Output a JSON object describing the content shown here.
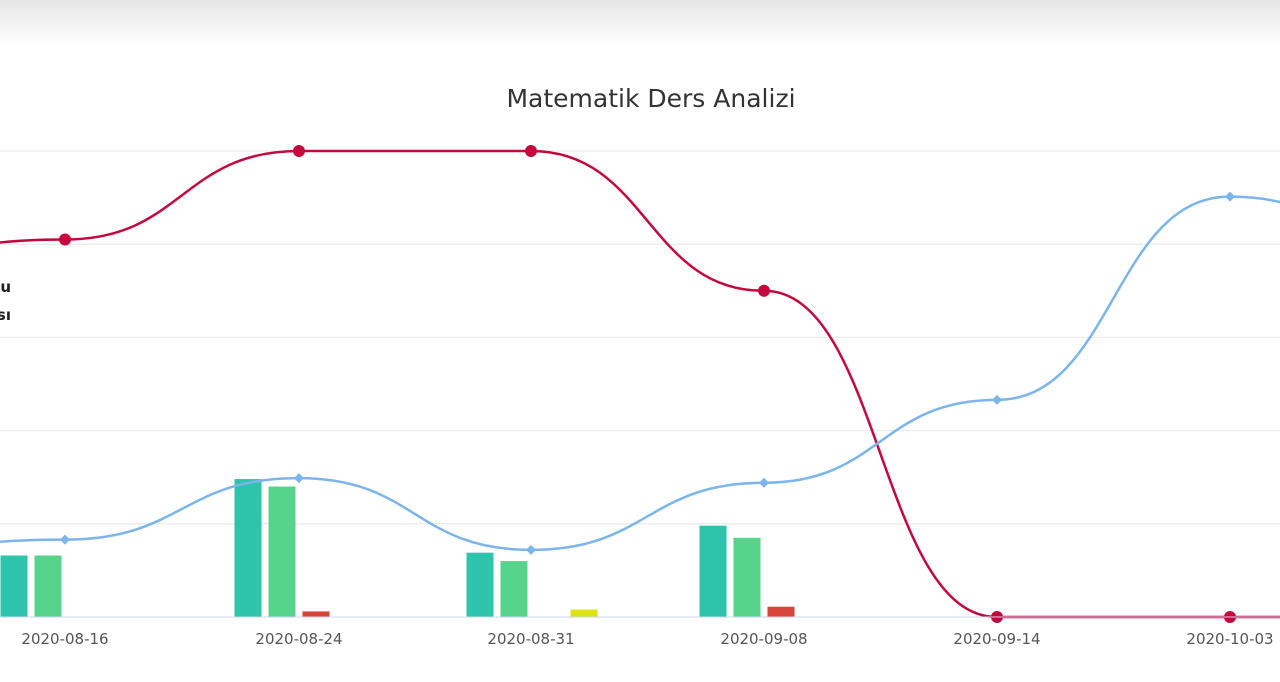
{
  "chart_data": {
    "type": "bar",
    "title": "Matematik Ders Analizi",
    "categories": [
      "2020-08-16",
      "2020-08-24",
      "2020-08-31",
      "2020-09-08",
      "2020-09-14",
      "2020-10-03"
    ],
    "ylim": [
      0,
      5
    ],
    "grid": true,
    "legend_fragments": [
      "u",
      "sı"
    ],
    "bar_series": [
      {
        "color": "#2ec4ac",
        "values": [
          0.66,
          1.48,
          0.69,
          0.98,
          0,
          0
        ]
      },
      {
        "color": "#57d48c",
        "values": [
          0.66,
          1.4,
          0.6,
          0.85,
          0,
          0
        ]
      },
      {
        "color": "#d9443a",
        "values": [
          0,
          0.06,
          0,
          0.11,
          0,
          0
        ]
      },
      {
        "color": "#dde313",
        "values": [
          0,
          0,
          0.08,
          0,
          0,
          0
        ]
      }
    ],
    "line_series": [
      {
        "color": "#c4083f",
        "marker": "circle",
        "values": [
          4.05,
          5.0,
          5.0,
          3.5,
          0,
          0
        ]
      },
      {
        "color": "#7cb5ec",
        "marker": "diamond",
        "values": [
          0.83,
          1.49,
          0.72,
          1.44,
          2.33,
          4.51
        ]
      }
    ]
  }
}
